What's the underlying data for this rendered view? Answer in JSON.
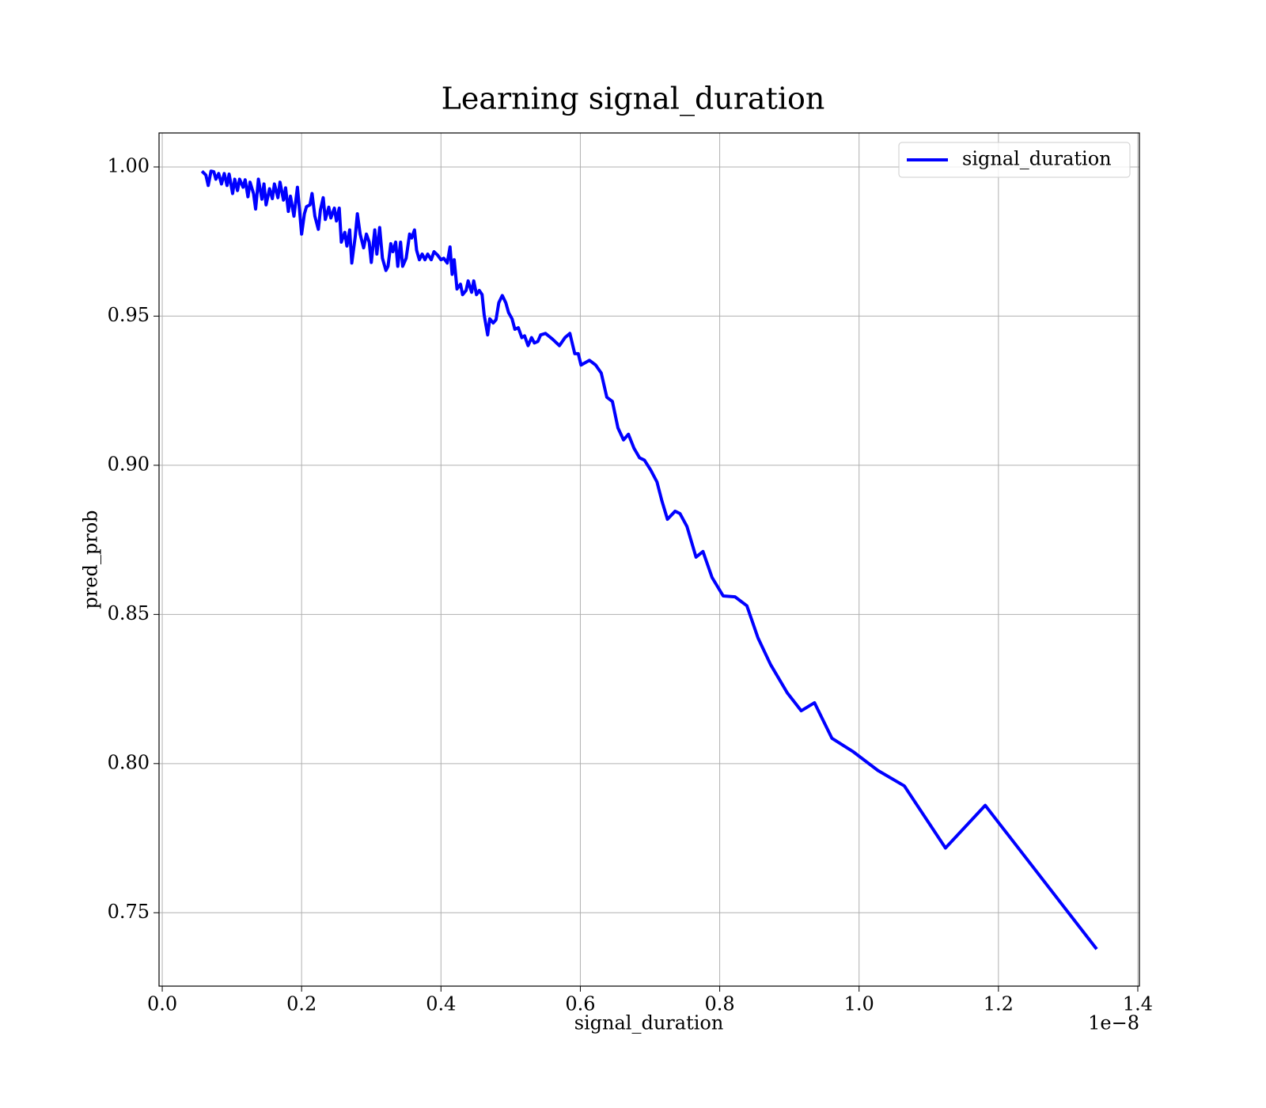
{
  "chart_data": {
    "type": "line",
    "title": "Learning signal_duration",
    "x_label": "signal_duration",
    "y_label": "pred_prob",
    "x_offset_label": "1e−8",
    "xlim": [
      -0.0046,
      1.4023
    ],
    "ylim": [
      0.7254,
      1.0114
    ],
    "xticks": [
      {
        "value": 0,
        "label": "0.0"
      },
      0.2,
      0.4,
      0.6,
      0.8,
      {
        "value": 1,
        "label": "1.0"
      },
      1.2,
      1.4
    ],
    "yticks": [
      0.75,
      {
        "value": 0.8,
        "label": "0.80"
      },
      0.85,
      {
        "value": 0.9,
        "label": "0.90"
      },
      0.95,
      {
        "value": 1,
        "label": "1.00"
      }
    ],
    "grid": true,
    "legend": "upper right",
    "x": [
      0.057,
      0.0626,
      0.066,
      0.07,
      0.074,
      0.077,
      0.081,
      0.085,
      0.089,
      0.093,
      0.096,
      0.101,
      0.104,
      0.108,
      0.111,
      0.116,
      0.119,
      0.123,
      0.126,
      0.131,
      0.134,
      0.138,
      0.143,
      0.146,
      0.149,
      0.154,
      0.158,
      0.161,
      0.166,
      0.169,
      0.174,
      0.177,
      0.181,
      0.184,
      0.189,
      0.194,
      0.197,
      0.2,
      0.204,
      0.207,
      0.212,
      0.215,
      0.219,
      0.224,
      0.227,
      0.231,
      0.234,
      0.239,
      0.242,
      0.247,
      0.25,
      0.254,
      0.257,
      0.262,
      0.265,
      0.269,
      0.272,
      0.277,
      0.28,
      0.284,
      0.289,
      0.293,
      0.297,
      0.3,
      0.305,
      0.308,
      0.312,
      0.316,
      0.321,
      0.324,
      0.328,
      0.331,
      0.335,
      0.338,
      0.342,
      0.345,
      0.35,
      0.355,
      0.358,
      0.362,
      0.365,
      0.369,
      0.373,
      0.377,
      0.381,
      0.386,
      0.39,
      0.395,
      0.4,
      0.404,
      0.409,
      0.413,
      0.416,
      0.419,
      0.423,
      0.428,
      0.431,
      0.436,
      0.439,
      0.444,
      0.447,
      0.451,
      0.455,
      0.459,
      0.462,
      0.467,
      0.47,
      0.475,
      0.479,
      0.483,
      0.488,
      0.493,
      0.497,
      0.502,
      0.506,
      0.511,
      0.516,
      0.52,
      0.525,
      0.53,
      0.534,
      0.539,
      0.543,
      0.55,
      0.56,
      0.57,
      0.578,
      0.585,
      0.592,
      0.597,
      0.601,
      0.613,
      0.622,
      0.63,
      0.638,
      0.646,
      0.654,
      0.662,
      0.669,
      0.677,
      0.685,
      0.692,
      0.701,
      0.71,
      0.717,
      0.725,
      0.736,
      0.743,
      0.753,
      0.766,
      0.776,
      0.789,
      0.805,
      0.822,
      0.839,
      0.855,
      0.873,
      0.897,
      0.917,
      0.936,
      0.961,
      0.992,
      1.027,
      1.065,
      1.124,
      1.181,
      1.341
    ],
    "series": [
      {
        "name": "signal_duration",
        "color": "#0000ff",
        "values": [
          0.9986,
          0.9973,
          0.9938,
          0.9986,
          0.9984,
          0.9959,
          0.9978,
          0.9943,
          0.9978,
          0.9938,
          0.9976,
          0.9911,
          0.9959,
          0.9921,
          0.9959,
          0.9932,
          0.9957,
          0.99,
          0.9949,
          0.9911,
          0.9859,
          0.9959,
          0.9892,
          0.9943,
          0.9873,
          0.9927,
          0.9894,
          0.9943,
          0.9897,
          0.9949,
          0.9889,
          0.993,
          0.9851,
          0.9902,
          0.9835,
          0.9932,
          0.9856,
          0.9775,
          0.9843,
          0.9867,
          0.9873,
          0.9911,
          0.9835,
          0.9791,
          0.9856,
          0.9897,
          0.9824,
          0.9865,
          0.9829,
          0.9862,
          0.9819,
          0.9862,
          0.9748,
          0.9781,
          0.9735,
          0.9789,
          0.9678,
          0.9767,
          0.9843,
          0.9775,
          0.9729,
          0.9775,
          0.9748,
          0.968,
          0.9789,
          0.9708,
          0.9797,
          0.9694,
          0.9653,
          0.9667,
          0.9743,
          0.9716,
          0.9748,
          0.9667,
          0.9748,
          0.9667,
          0.9694,
          0.9775,
          0.9762,
          0.9789,
          0.9721,
          0.9689,
          0.9708,
          0.9689,
          0.9708,
          0.9689,
          0.9716,
          0.9705,
          0.9689,
          0.9694,
          0.9678,
          0.9732,
          0.964,
          0.9689,
          0.9591,
          0.9607,
          0.9572,
          0.9586,
          0.9618,
          0.958,
          0.9618,
          0.9572,
          0.9586,
          0.9572,
          0.9504,
          0.9437,
          0.9491,
          0.9477,
          0.9488,
          0.9545,
          0.9569,
          0.9545,
          0.9512,
          0.9491,
          0.9456,
          0.9461,
          0.9428,
          0.9434,
          0.9401,
          0.9428,
          0.941,
          0.9415,
          0.9437,
          0.9442,
          0.9423,
          0.9401,
          0.9428,
          0.9442,
          0.9374,
          0.9374,
          0.9336,
          0.9352,
          0.9336,
          0.9309,
          0.9228,
          0.9214,
          0.9125,
          0.9085,
          0.9104,
          0.9057,
          0.9025,
          0.9017,
          0.8984,
          0.8944,
          0.8881,
          0.8819,
          0.8846,
          0.8838,
          0.8795,
          0.8692,
          0.8711,
          0.8624,
          0.8562,
          0.8559,
          0.8529,
          0.8421,
          0.8332,
          0.8237,
          0.8177,
          0.8204,
          0.8085,
          0.8039,
          0.7977,
          0.7925,
          0.7717,
          0.786,
          0.7378
        ]
      }
    ]
  }
}
